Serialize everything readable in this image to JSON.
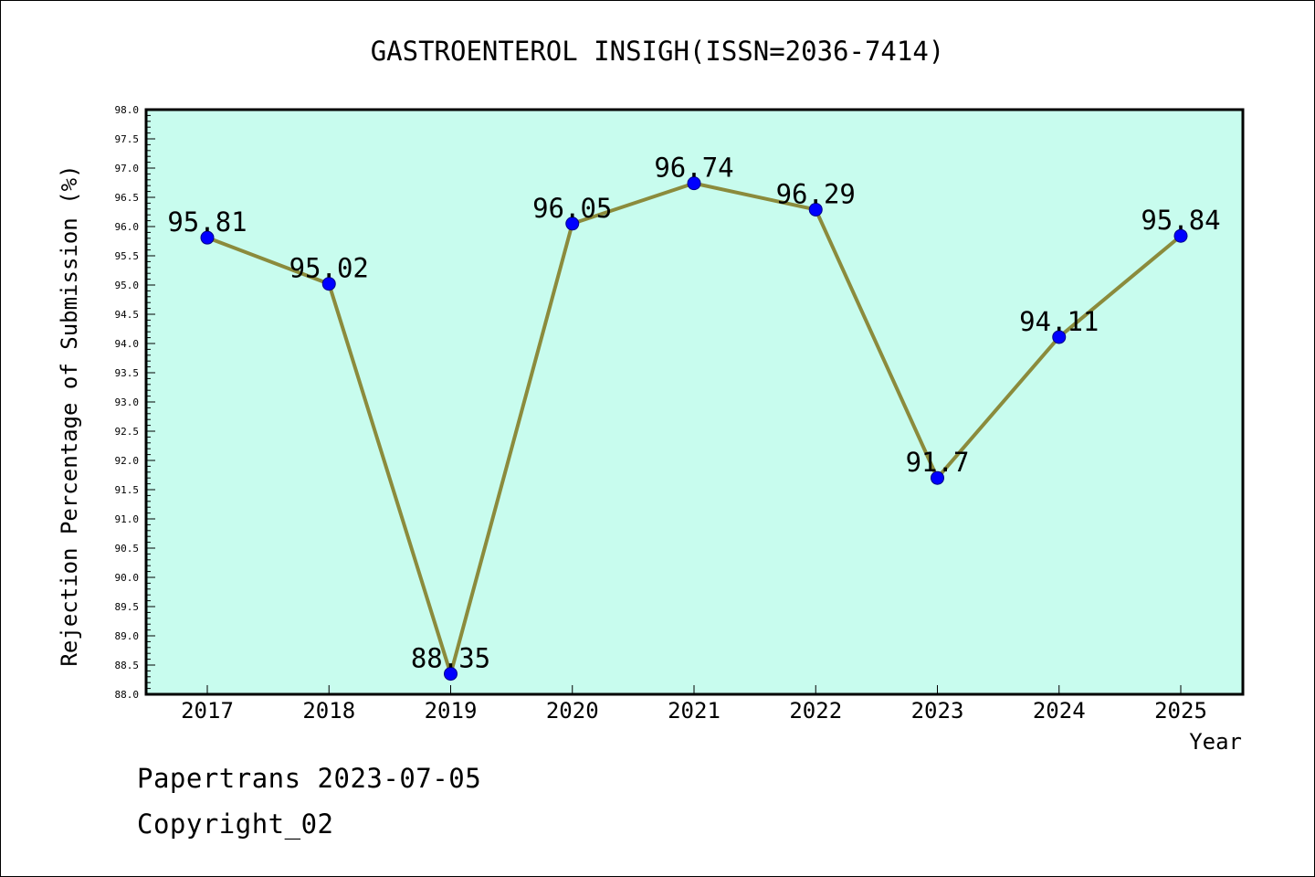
{
  "chart_data": {
    "type": "line",
    "title": "GASTROENTEROL INSIGH(ISSN=2036-7414)",
    "xlabel": "Year",
    "ylabel": "Rejection Percentage of Submission (%)",
    "categories": [
      "2017",
      "2018",
      "2019",
      "2020",
      "2021",
      "2022",
      "2023",
      "2024",
      "2025"
    ],
    "values": [
      95.81,
      95.02,
      88.35,
      96.05,
      96.74,
      96.29,
      91.7,
      94.11,
      95.84
    ],
    "data_labels": [
      "95.81",
      "95.02",
      "88.35",
      "96.05",
      "96.74",
      "96.29",
      "91.7",
      "94.11",
      "95.84"
    ],
    "ylim": [
      88.0,
      98.0
    ],
    "ytick_step": 0.5,
    "yticks": [
      "88.0",
      "88.5",
      "89.0",
      "89.5",
      "90.0",
      "90.5",
      "91.0",
      "91.5",
      "92.0",
      "92.5",
      "93.0",
      "93.5",
      "94.0",
      "94.5",
      "95.0",
      "95.5",
      "96.0",
      "96.5",
      "97.0",
      "97.5",
      "98.0"
    ],
    "grid": false,
    "colors": {
      "plot_background": "#c8fcee",
      "line": "#8b8b3c",
      "marker": "#0000ff"
    }
  },
  "footer": {
    "line1": "Papertrans 2023-07-05",
    "line2": "Copyright_02"
  }
}
